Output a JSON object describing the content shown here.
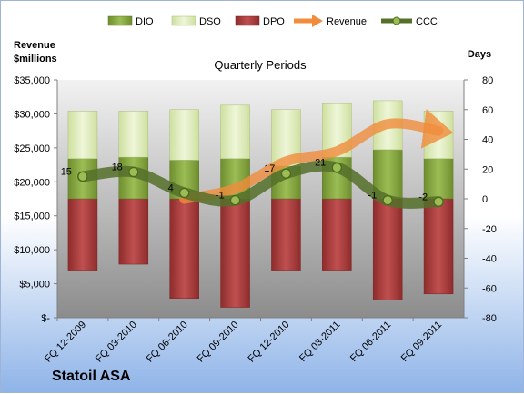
{
  "chart_data": {
    "type": "bar",
    "subtitle": "Quarterly Periods",
    "company": "Statoil ASA",
    "ylabel_left": "Revenue\n$millions",
    "ylabel_right": "Days",
    "categories": [
      "FQ 12-2009",
      "FQ 03-2010",
      "FQ 06-2010",
      "FQ 09-2010",
      "FQ 12-2010",
      "FQ 03-2011",
      "FQ 06-2011",
      "FQ 09-2011"
    ],
    "left_axis": {
      "min": 0,
      "max": 35000,
      "step": 5000,
      "tick_labels": [
        "$-",
        "$5,000",
        "$10,000",
        "$15,000",
        "$20,000",
        "$25,000",
        "$30,000",
        "$35,000"
      ]
    },
    "right_axis": {
      "min": -80,
      "max": 80,
      "step": 20,
      "tick_labels": [
        "-80",
        "-60",
        "-40",
        "-20",
        "0",
        "20",
        "40",
        "60",
        "80"
      ]
    },
    "legend": [
      "DIO",
      "DSO",
      "DPO",
      "Revenue",
      "CCC"
    ],
    "series": [
      {
        "name": "DIO",
        "axis": "right",
        "values": [
          27,
          28,
          26,
          27,
          22,
          28,
          33,
          27
        ],
        "color": "#7a9a3a"
      },
      {
        "name": "DSO",
        "axis": "right",
        "values": [
          32,
          31,
          34,
          36,
          38,
          36,
          33,
          32
        ],
        "color": "#d8e8b0"
      },
      {
        "name": "DPO",
        "axis": "right",
        "values": [
          -48,
          -44,
          -67,
          -73,
          -48,
          -48,
          -68,
          -64
        ],
        "color": "#a83c3c"
      },
      {
        "name": "Revenue",
        "axis": "left",
        "values": [
          null,
          null,
          17500,
          19000,
          23000,
          24500,
          28500,
          27500
        ],
        "color": "#f08c3c"
      },
      {
        "name": "CCC",
        "axis": "right",
        "values": [
          15,
          18,
          4,
          -1,
          17,
          21,
          -1,
          -2
        ],
        "color": "#5c7a2a"
      }
    ],
    "ccc_labels": [
      "15",
      "18",
      "4",
      "-1",
      "17",
      "21",
      "-1",
      "-2"
    ],
    "grid": false,
    "legend_placement": "top"
  }
}
